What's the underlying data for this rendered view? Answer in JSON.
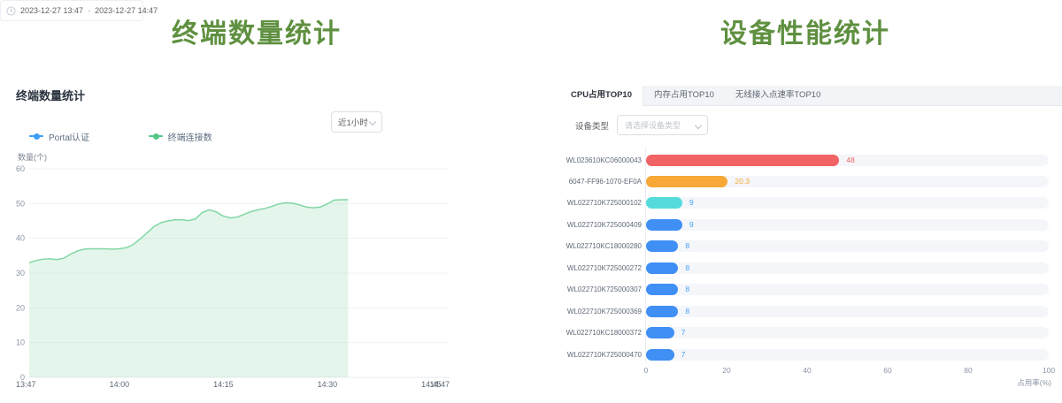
{
  "left_panel": {
    "title": "终端数量统计",
    "title_color": "#5f9040",
    "section_title": "终端数量统计",
    "legend": [
      {
        "label": "Portal认证",
        "color": "#3f9ef5"
      },
      {
        "label": "终端连接数",
        "color": "#52c885"
      }
    ],
    "time_range_select": {
      "value": "近1小时"
    },
    "date_range": {
      "start": "2023-12-27 13:47",
      "separator": "-",
      "end": "2023-12-27 14:47"
    }
  },
  "right_panel": {
    "title": "设备性能统计",
    "title_color": "#5f9040",
    "tabs": [
      {
        "label": "CPU占用TOP10",
        "active": true
      },
      {
        "label": "内存占用TOP10",
        "active": false
      },
      {
        "label": "无线接入点速率TOP10",
        "active": false
      }
    ],
    "device_type": {
      "label": "设备类型",
      "placeholder": "请选择设备类型"
    }
  },
  "chart_data": [
    {
      "type": "area",
      "title": "终端数量统计",
      "ylabel": "数量(个)",
      "ylim": [
        0,
        60
      ],
      "yticks": [
        0,
        10,
        20,
        30,
        40,
        50,
        60
      ],
      "x_range_minutes": 60,
      "xticks": [
        {
          "label": "13:47",
          "minute": 0
        },
        {
          "label": "14:00",
          "minute": 13
        },
        {
          "label": "14:15",
          "minute": 28
        },
        {
          "label": "14:30",
          "minute": 43
        },
        {
          "label": "14:45",
          "minute": 58
        },
        {
          "label": "14:47",
          "minute": 60
        }
      ],
      "grid": true,
      "legend_position": "top-left",
      "series": [
        {
          "name": "Portal认证",
          "color": "#3f9ef5",
          "points": []
        },
        {
          "name": "终端连接数",
          "color": "#82d7a5",
          "fill": "rgba(130,215,165,0.22)",
          "points": [
            [
              0,
              33
            ],
            [
              1,
              33.6
            ],
            [
              2,
              34
            ],
            [
              3,
              34.1
            ],
            [
              4,
              33.9
            ],
            [
              5,
              34.3
            ],
            [
              6,
              35.5
            ],
            [
              7,
              36.4
            ],
            [
              8,
              36.9
            ],
            [
              9,
              37
            ],
            [
              10,
              37
            ],
            [
              11,
              37
            ],
            [
              12,
              36.9
            ],
            [
              13,
              37
            ],
            [
              14,
              37.3
            ],
            [
              15,
              38.2
            ],
            [
              16,
              39.8
            ],
            [
              17,
              41.6
            ],
            [
              18,
              43.4
            ],
            [
              19,
              44.5
            ],
            [
              20,
              45
            ],
            [
              21,
              45.3
            ],
            [
              22,
              45.3
            ],
            [
              23,
              45.1
            ],
            [
              24,
              45.6
            ],
            [
              25,
              47.5
            ],
            [
              26,
              48.2
            ],
            [
              27,
              47.6
            ],
            [
              28,
              46.4
            ],
            [
              29,
              45.9
            ],
            [
              30,
              46.1
            ],
            [
              31,
              46.9
            ],
            [
              32,
              47.7
            ],
            [
              33,
              48.2
            ],
            [
              34,
              48.6
            ],
            [
              35,
              49.2
            ],
            [
              36,
              49.9
            ],
            [
              37,
              50.2
            ],
            [
              38,
              50.1
            ],
            [
              39,
              49.6
            ],
            [
              40,
              49
            ],
            [
              41,
              48.8
            ],
            [
              42,
              49
            ],
            [
              43,
              49.9
            ],
            [
              44,
              51
            ],
            [
              45,
              51.1
            ],
            [
              46,
              51.1
            ]
          ]
        }
      ]
    },
    {
      "type": "bar",
      "orientation": "horizontal",
      "xlabel": "占用率(%)",
      "xlim": [
        0,
        100
      ],
      "xticks": [
        0,
        20,
        40,
        60,
        80,
        100
      ],
      "track_color": "#f4f6fa",
      "items": [
        {
          "label": "WL023610KC06000043",
          "value": 48,
          "display": "48",
          "color": "#f16364",
          "label_color": "#f16364"
        },
        {
          "label": "6047-FF96-1070-EF0A",
          "value": 20.3,
          "display": "20.3",
          "color": "#f7a836",
          "label_color": "#f7a836"
        },
        {
          "label": "WL022710K725000102",
          "value": 9,
          "display": "9",
          "color": "#55dbdb",
          "label_color": "#4aa2f5"
        },
        {
          "label": "WL022710K725000409",
          "value": 9,
          "display": "9",
          "color": "#3f8ff5",
          "label_color": "#4aa2f5"
        },
        {
          "label": "WL022710KC18000280",
          "value": 8,
          "display": "8",
          "color": "#3f8ff5",
          "label_color": "#4aa2f5"
        },
        {
          "label": "WL022710K725000272",
          "value": 8,
          "display": "8",
          "color": "#3f8ff5",
          "label_color": "#4aa2f5"
        },
        {
          "label": "WL022710K725000307",
          "value": 8,
          "display": "8",
          "color": "#3f8ff5",
          "label_color": "#4aa2f5"
        },
        {
          "label": "WL022710K725000369",
          "value": 8,
          "display": "8",
          "color": "#3f8ff5",
          "label_color": "#4aa2f5"
        },
        {
          "label": "WL022710KC18000372",
          "value": 7,
          "display": "7",
          "color": "#3f8ff5",
          "label_color": "#4aa2f5"
        },
        {
          "label": "WL022710K725000470",
          "value": 7,
          "display": "7",
          "color": "#3f8ff5",
          "label_color": "#4aa2f5"
        }
      ]
    }
  ]
}
